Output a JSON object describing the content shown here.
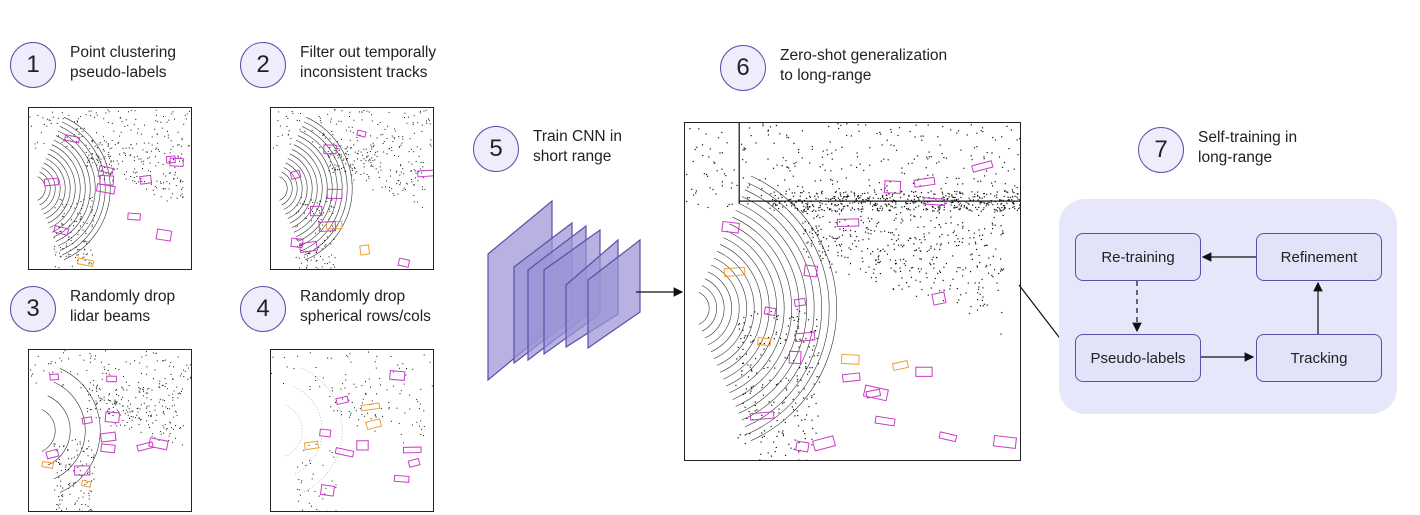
{
  "steps": {
    "s1": {
      "num": "1",
      "text": "Point clustering\npseudo-labels"
    },
    "s2": {
      "num": "2",
      "text": "Filter out temporally\ninconsistent tracks"
    },
    "s3": {
      "num": "3",
      "text": "Randomly drop\nlidar beams"
    },
    "s4": {
      "num": "4",
      "text": "Randomly drop\nspherical rows/cols"
    },
    "s5": {
      "num": "5",
      "text": "Train CNN in\nshort range"
    },
    "s6": {
      "num": "6",
      "text": "Zero-shot generalization\nto long-range"
    },
    "s7": {
      "num": "7",
      "text": "Self-training in\nlong-range"
    }
  },
  "self_training": {
    "retraining": "Re-training",
    "refinement": "Refinement",
    "pseudo_labels": "Pseudo-labels",
    "tracking": "Tracking"
  },
  "colors": {
    "accent": "#5b4fa8",
    "box_magenta": "#c83cc8",
    "box_orange": "#f0a030",
    "circle_fill": "#efedfb",
    "selftrain_bg": "#e7e7fb"
  }
}
